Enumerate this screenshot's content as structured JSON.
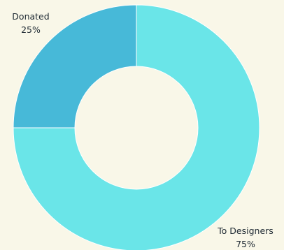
{
  "chart_data": {
    "type": "pie",
    "style": "donut",
    "title": "",
    "categories": [
      "To Designers",
      "Donated"
    ],
    "values": [
      75,
      25
    ],
    "value_labels": [
      "75%",
      "25%"
    ],
    "colors": [
      "#6ae5e8",
      "#47b9d8"
    ],
    "legend": "none"
  },
  "colors": {
    "background": "#f9f7e8",
    "label_text": "#1f2a33",
    "slice_separator": "#ffffff"
  }
}
